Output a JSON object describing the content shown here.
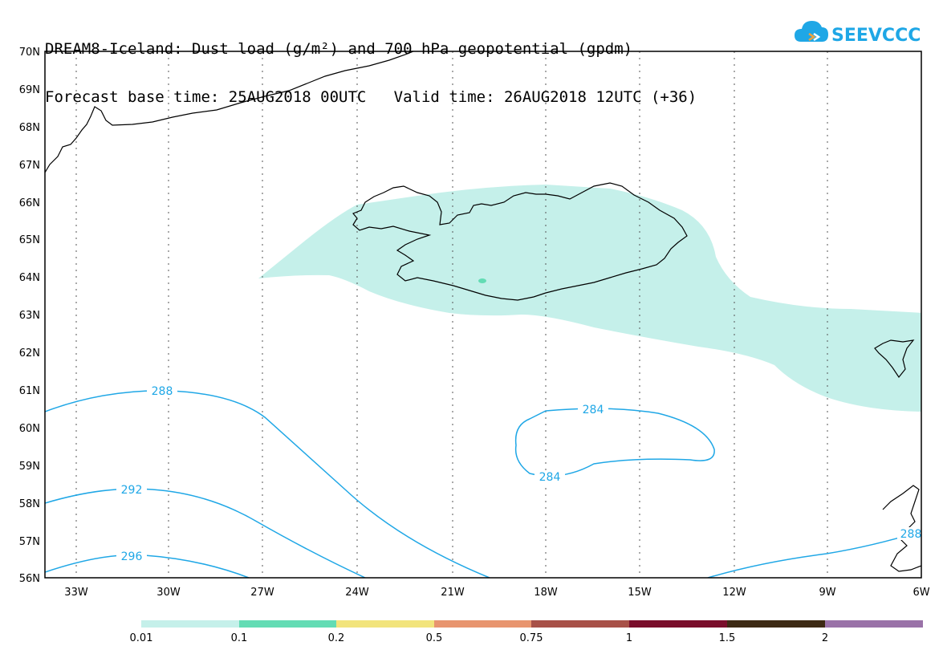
{
  "title_line1": "DREAM8-Iceland: Dust load (g/m²) and 700 hPa geopotential (gpdm)",
  "title_line2": "Forecast base time: 25AUG2018 00UTC   Valid time: 26AUG2018 12UTC (+36)",
  "logo": {
    "text": "SEEVCCC",
    "icon": "cloud-icon",
    "color": "#1fa7e6"
  },
  "map": {
    "lat_labels": [
      "70N",
      "69N",
      "68N",
      "67N",
      "66N",
      "65N",
      "64N",
      "63N",
      "62N",
      "61N",
      "60N",
      "59N",
      "58N",
      "57N",
      "56N"
    ],
    "lon_labels": [
      "33W",
      "30W",
      "27W",
      "24W",
      "21W",
      "18W",
      "15W",
      "12W",
      "9W",
      "6W"
    ],
    "contour_color": "#1fa7e6",
    "dust_color": "#c5f0ea",
    "dust_strong_color": "#63dcb4",
    "contours": [
      {
        "value": "288",
        "label": "288"
      },
      {
        "value": "292",
        "label": "292"
      },
      {
        "value": "296",
        "label": "296"
      },
      {
        "value": "284",
        "label": "284"
      },
      {
        "value": "284",
        "label": "284"
      },
      {
        "value": "288",
        "label": "288"
      }
    ]
  },
  "colorbar": {
    "labels": [
      "0.01",
      "0.1",
      "0.2",
      "0.5",
      "0.75",
      "1",
      "1.5",
      "2"
    ],
    "colors": [
      "#c5f0ea",
      "#63dcb4",
      "#f2e47c",
      "#e8956f",
      "#a85148",
      "#7a0e2b",
      "#3d2a14",
      "#9a72a8"
    ]
  }
}
